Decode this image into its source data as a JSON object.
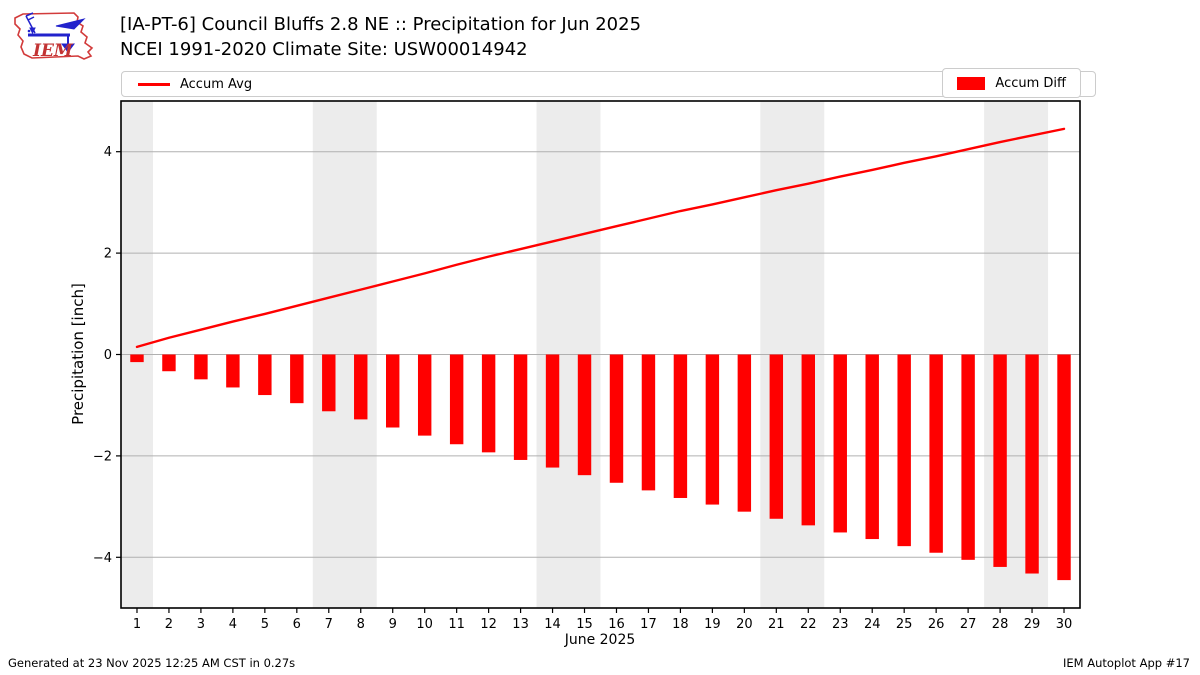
{
  "header": {
    "title_line1": "[IA-PT-6] Council Bluffs 2.8 NE :: Precipitation for Jun 2025",
    "title_line2": "NCEI 1991-2020 Climate Site: USW00014942",
    "logo_text": "IEM"
  },
  "legend": {
    "line_label": "Accum Avg",
    "bar_label": "Accum Diff"
  },
  "footer": {
    "left": "Generated at 23 Nov 2025 12:25 AM CST in 0.27s",
    "right": "IEM Autoplot App #17"
  },
  "colors": {
    "series_red": "#ff0000",
    "weekend_band": "#ececec",
    "grid": "#b0b0b0",
    "spine": "#000000",
    "legend_border": "#cccccc",
    "logo_red": "#d23b3b",
    "logo_blue": "#2222cc"
  },
  "chart_data": {
    "type": "bar",
    "title": "[IA-PT-6] Council Bluffs 2.8 NE :: Precipitation for Jun 2025",
    "subtitle": "NCEI 1991-2020 Climate Site: USW00014942",
    "xlabel": "June 2025",
    "ylabel": "Precipitation [inch]",
    "x": [
      1,
      2,
      3,
      4,
      5,
      6,
      7,
      8,
      9,
      10,
      11,
      12,
      13,
      14,
      15,
      16,
      17,
      18,
      19,
      20,
      21,
      22,
      23,
      24,
      25,
      26,
      27,
      28,
      29,
      30
    ],
    "series": [
      {
        "name": "Accum Avg",
        "type": "line",
        "color": "#ff0000",
        "values": [
          0.15,
          0.33,
          0.49,
          0.65,
          0.8,
          0.96,
          1.12,
          1.28,
          1.44,
          1.6,
          1.77,
          1.93,
          2.08,
          2.23,
          2.38,
          2.53,
          2.68,
          2.83,
          2.96,
          3.1,
          3.24,
          3.37,
          3.51,
          3.64,
          3.78,
          3.91,
          4.05,
          4.19,
          4.32,
          4.45
        ]
      },
      {
        "name": "Accum Diff",
        "type": "bar",
        "color": "#ff0000",
        "values": [
          -0.15,
          -0.33,
          -0.49,
          -0.65,
          -0.8,
          -0.96,
          -1.12,
          -1.28,
          -1.44,
          -1.6,
          -1.77,
          -1.93,
          -2.08,
          -2.23,
          -2.38,
          -2.53,
          -2.68,
          -2.83,
          -2.96,
          -3.1,
          -3.24,
          -3.37,
          -3.51,
          -3.64,
          -3.78,
          -3.91,
          -4.05,
          -4.19,
          -4.32,
          -4.45
        ]
      }
    ],
    "xlim": [
      0.5,
      30.5
    ],
    "ylim": [
      -5,
      5
    ],
    "yticks": [
      {
        "value": 4,
        "label": "4"
      },
      {
        "value": 2,
        "label": "2"
      },
      {
        "value": 0,
        "label": "0"
      },
      {
        "value": -2,
        "label": "−2"
      },
      {
        "value": -4,
        "label": "−4"
      }
    ],
    "grid": true,
    "legend_position": "top",
    "weekend_bands": [
      [
        0.5,
        1.5
      ],
      [
        6.5,
        8.5
      ],
      [
        13.5,
        15.5
      ],
      [
        20.5,
        22.5
      ],
      [
        27.5,
        29.5
      ]
    ],
    "bar_width_days": 0.42
  }
}
